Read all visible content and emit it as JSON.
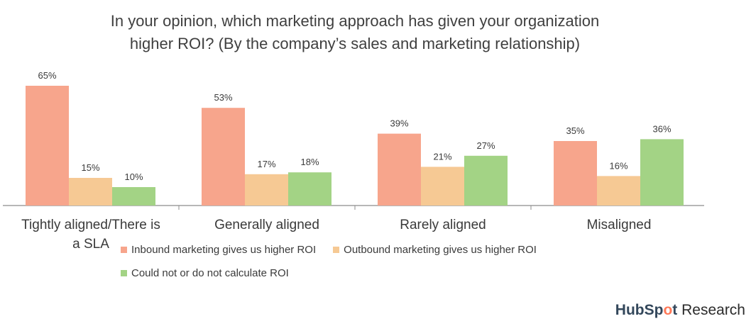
{
  "chart_data": {
    "type": "bar",
    "title_lines": [
      "In your opinion, which marketing approach has given your organization",
      "higher ROI? (By the company’s sales and marketing relationship)"
    ],
    "categories": [
      "Tightly aligned/There is a SLA",
      "Generally aligned",
      "Rarely aligned",
      "Misaligned"
    ],
    "series": [
      {
        "name": "Inbound marketing gives us higher ROI",
        "color": "#f7a58c",
        "values": [
          65,
          53,
          39,
          35
        ],
        "labels": [
          "65%",
          "53%",
          "39%",
          "35%"
        ]
      },
      {
        "name": "Outbound marketing gives us higher ROI",
        "color": "#f6c994",
        "values": [
          15,
          17,
          21,
          16
        ],
        "labels": [
          "15%",
          "17%",
          "21%",
          "16%"
        ]
      },
      {
        "name": "Could not or do not calculate ROI",
        "color": "#a3d385",
        "values": [
          10,
          18,
          27,
          36
        ],
        "labels": [
          "10%",
          "18%",
          "27%",
          "36%"
        ]
      }
    ],
    "ylim": [
      0,
      75
    ],
    "grid": false,
    "legend_position": "bottom"
  },
  "brand": {
    "part1": "HubSp",
    "part2": "o",
    "part3": "t",
    "suffix": " Research"
  }
}
